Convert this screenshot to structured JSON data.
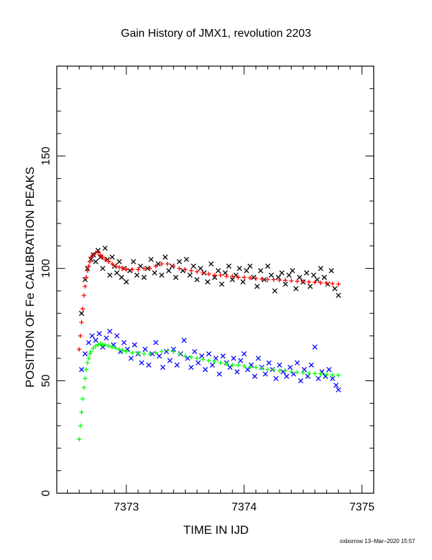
{
  "chart_data": {
    "type": "scatter",
    "title": "Gain History of JMX1, revolution 2203",
    "xlabel": "TIME IN IJD",
    "ylabel": "POSITION OF Fe CALIBRATION PEAKS",
    "footer": "oxborrow 13–Mar–2020 15:57",
    "xlim": [
      7372.41,
      7375.1
    ],
    "ylim": [
      0,
      190
    ],
    "xticks": [
      7373,
      7374,
      7375
    ],
    "yticks": [
      0,
      50,
      100,
      150
    ],
    "xtick_labels": [
      "7373",
      "7374",
      "7375"
    ],
    "ytick_labels": [
      "0",
      "50",
      "100",
      "150"
    ],
    "grid": false,
    "series": [
      {
        "color": "#000000",
        "marker": "x",
        "x": [
          7372.62,
          7372.65,
          7372.67,
          7372.7,
          7372.72,
          7372.74,
          7372.76,
          7372.78,
          7372.8,
          7372.82,
          7372.84,
          7372.86,
          7372.88,
          7372.9,
          7372.92,
          7372.94,
          7372.96,
          7372.98,
          7373.0,
          7373.03,
          7373.06,
          7373.09,
          7373.12,
          7373.15,
          7373.18,
          7373.21,
          7373.24,
          7373.27,
          7373.3,
          7373.33,
          7373.36,
          7373.39,
          7373.42,
          7373.45,
          7373.48,
          7373.51,
          7373.54,
          7373.57,
          7373.6,
          7373.63,
          7373.66,
          7373.69,
          7373.72,
          7373.75,
          7373.78,
          7373.81,
          7373.84,
          7373.87,
          7373.9,
          7373.93,
          7373.96,
          7373.99,
          7374.02,
          7374.05,
          7374.08,
          7374.11,
          7374.14,
          7374.17,
          7374.2,
          7374.23,
          7374.26,
          7374.29,
          7374.32,
          7374.35,
          7374.38,
          7374.41,
          7374.44,
          7374.47,
          7374.5,
          7374.53,
          7374.56,
          7374.59,
          7374.62,
          7374.65,
          7374.68,
          7374.71,
          7374.74,
          7374.77,
          7374.8
        ],
        "y": [
          80,
          95,
          100,
          104,
          106,
          103,
          108,
          105,
          100,
          109,
          104,
          97,
          105,
          101,
          98,
          103,
          96,
          100,
          94,
          99,
          103,
          97,
          101,
          96,
          100,
          104,
          98,
          102,
          97,
          105,
          99,
          101,
          96,
          103,
          99,
          104,
          97,
          101,
          95,
          100,
          98,
          94,
          102,
          96,
          99,
          93,
          98,
          101,
          95,
          97,
          100,
          94,
          99,
          101,
          96,
          92,
          99,
          95,
          101,
          97,
          90,
          96,
          98,
          93,
          97,
          99,
          91,
          96,
          94,
          98,
          92,
          97,
          95,
          100,
          96,
          93,
          99,
          91,
          88
        ]
      },
      {
        "color": "#ff0000",
        "marker": "+",
        "x": [
          7372.6,
          7372.61,
          7372.62,
          7372.63,
          7372.64,
          7372.65,
          7372.66,
          7372.67,
          7372.68,
          7372.69,
          7372.7,
          7372.72,
          7372.74,
          7372.76,
          7372.78,
          7372.8,
          7372.82,
          7372.85,
          7372.88,
          7372.91,
          7372.94,
          7372.97,
          7373.0,
          7373.05,
          7373.1,
          7373.15,
          7373.2,
          7373.25,
          7373.3,
          7373.35,
          7373.4,
          7373.45,
          7373.5,
          7373.55,
          7373.6,
          7373.65,
          7373.7,
          7373.75,
          7373.8,
          7373.85,
          7373.9,
          7373.95,
          7374.0,
          7374.05,
          7374.1,
          7374.15,
          7374.2,
          7374.25,
          7374.3,
          7374.35,
          7374.4,
          7374.45,
          7374.5,
          7374.55,
          7374.6,
          7374.65,
          7374.7,
          7374.75,
          7374.8
        ],
        "y": [
          64,
          70,
          76,
          82,
          88,
          92,
          96,
          99,
          101,
          103,
          105,
          106,
          107,
          107,
          106,
          105,
          104,
          103,
          102,
          101,
          100.5,
          100,
          99.5,
          99.5,
          99.5,
          100,
          100,
          101,
          102,
          102,
          101,
          100,
          99.5,
          99,
          98.5,
          98,
          97.5,
          97,
          97,
          96.5,
          96.5,
          96,
          96,
          95.8,
          95.5,
          95.3,
          95,
          95,
          94.8,
          94.7,
          94.5,
          94.3,
          94.2,
          94,
          93.8,
          93.6,
          93.4,
          93.2,
          93
        ]
      },
      {
        "color": "#0000ff",
        "marker": "x",
        "x": [
          7372.62,
          7372.65,
          7372.68,
          7372.71,
          7372.74,
          7372.77,
          7372.8,
          7372.83,
          7372.86,
          7372.89,
          7372.92,
          7372.95,
          7372.98,
          7373.01,
          7373.04,
          7373.07,
          7373.1,
          7373.13,
          7373.16,
          7373.19,
          7373.22,
          7373.25,
          7373.28,
          7373.31,
          7373.34,
          7373.37,
          7373.4,
          7373.43,
          7373.46,
          7373.49,
          7373.52,
          7373.55,
          7373.58,
          7373.61,
          7373.64,
          7373.67,
          7373.7,
          7373.73,
          7373.76,
          7373.79,
          7373.82,
          7373.85,
          7373.88,
          7373.91,
          7373.94,
          7373.97,
          7374.0,
          7374.03,
          7374.06,
          7374.09,
          7374.12,
          7374.15,
          7374.18,
          7374.21,
          7374.24,
          7374.27,
          7374.3,
          7374.33,
          7374.36,
          7374.39,
          7374.42,
          7374.45,
          7374.48,
          7374.51,
          7374.54,
          7374.57,
          7374.6,
          7374.63,
          7374.66,
          7374.69,
          7374.72,
          7374.75,
          7374.78,
          7374.8
        ],
        "y": [
          55,
          62,
          67,
          70,
          68,
          71,
          65,
          69,
          72,
          66,
          70,
          63,
          67,
          64,
          60,
          66,
          62,
          58,
          64,
          57,
          62,
          67,
          61,
          56,
          63,
          59,
          64,
          57,
          62,
          68,
          60,
          56,
          63,
          58,
          61,
          55,
          62,
          57,
          60,
          53,
          61,
          58,
          56,
          60,
          54,
          59,
          62,
          55,
          57,
          52,
          60,
          56,
          53,
          58,
          55,
          51,
          57,
          54,
          52,
          56,
          53,
          58,
          50,
          55,
          52,
          57,
          65,
          51,
          54,
          52,
          55,
          51,
          48,
          46
        ]
      },
      {
        "color": "#00ff00",
        "marker": "+",
        "x": [
          7372.6,
          7372.61,
          7372.62,
          7372.63,
          7372.64,
          7372.65,
          7372.66,
          7372.67,
          7372.68,
          7372.69,
          7372.7,
          7372.72,
          7372.74,
          7372.76,
          7372.78,
          7372.8,
          7372.82,
          7372.85,
          7372.88,
          7372.91,
          7372.94,
          7372.97,
          7373.0,
          7373.05,
          7373.1,
          7373.15,
          7373.2,
          7373.25,
          7373.3,
          7373.35,
          7373.4,
          7373.45,
          7373.5,
          7373.55,
          7373.6,
          7373.65,
          7373.7,
          7373.75,
          7373.8,
          7373.85,
          7373.9,
          7373.95,
          7374.0,
          7374.05,
          7374.1,
          7374.15,
          7374.2,
          7374.25,
          7374.3,
          7374.35,
          7374.4,
          7374.45,
          7374.5,
          7374.55,
          7374.6,
          7374.65,
          7374.7,
          7374.75,
          7374.8
        ],
        "y": [
          24,
          30,
          36,
          42,
          47,
          51,
          55,
          58,
          60,
          62,
          63,
          64.5,
          65.5,
          66,
          66.5,
          66,
          66,
          65.5,
          65,
          64.5,
          64,
          63.5,
          63,
          62.5,
          62.5,
          62,
          62,
          62.5,
          63,
          63.5,
          63,
          62,
          61,
          60.5,
          60,
          59.5,
          59,
          58.5,
          58,
          57.5,
          57,
          57,
          56.5,
          56,
          56,
          55.5,
          55,
          55,
          54.5,
          54.5,
          54,
          53.8,
          53.6,
          53.4,
          53.2,
          53,
          52.8,
          52.6,
          52.5
        ]
      }
    ]
  }
}
